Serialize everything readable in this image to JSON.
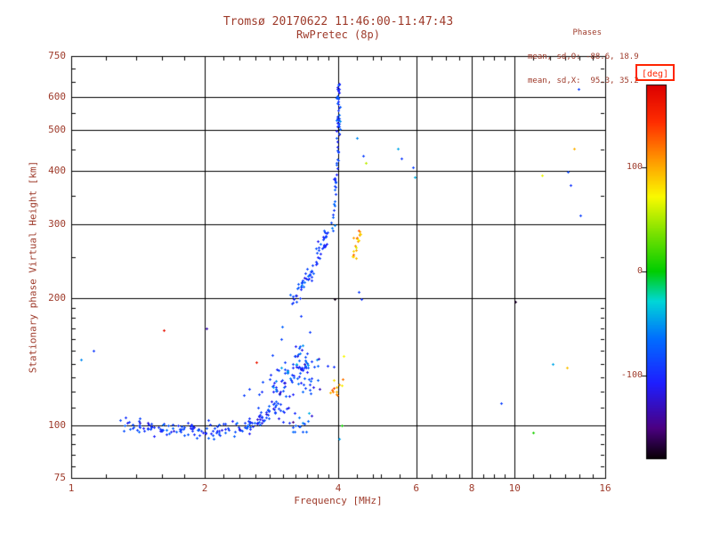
{
  "header": {
    "title": "Tromsø 20170622 11:46:00-11:47:43",
    "subtitle": "RwPretec (8p)"
  },
  "legend": {
    "title": "Phases",
    "line_o": "mean, sd,O: -88.6, 18.9",
    "line_x": "mean, sd,X:  95.3, 35.2"
  },
  "colorbar": {
    "unit_label": "[deg]",
    "ticks": [
      100,
      0,
      -100
    ],
    "range": [
      -180,
      180
    ],
    "stops": [
      {
        "t": 0.0,
        "c": "#0a0008"
      },
      {
        "t": 0.08,
        "c": "#4b0082"
      },
      {
        "t": 0.2,
        "c": "#1e1eff"
      },
      {
        "t": 0.32,
        "c": "#006eff"
      },
      {
        "t": 0.42,
        "c": "#00d7d7"
      },
      {
        "t": 0.5,
        "c": "#00cd00"
      },
      {
        "t": 0.6,
        "c": "#78e100"
      },
      {
        "t": 0.7,
        "c": "#fafa00"
      },
      {
        "t": 0.8,
        "c": "#ff9600"
      },
      {
        "t": 0.9,
        "c": "#ff2d00"
      },
      {
        "t": 1.0,
        "c": "#dc0000"
      }
    ]
  },
  "style": {
    "text_color": "#9e3a2a",
    "accent_red": "#ff2400",
    "axis_color": "#000000",
    "background": "#ffffff"
  },
  "chart_data": {
    "type": "scatter",
    "title": "Tromsø 20170622 11:46:00-11:47:43 — RwPretec (8p)",
    "xlabel": "Frequency [MHz]",
    "ylabel": "Stationary phase Virtual Height [km]",
    "xscale": "log",
    "yscale": "log",
    "xlim": [
      1,
      16
    ],
    "ylim": [
      75,
      750
    ],
    "x_ticks": [
      1,
      2,
      4,
      6,
      8,
      10,
      16
    ],
    "y_ticks": [
      75,
      100,
      200,
      300,
      400,
      500,
      600,
      750
    ],
    "grid_x": [
      2,
      4,
      6,
      8,
      10
    ],
    "grid_y": [
      100,
      200,
      300,
      400,
      500,
      600
    ],
    "x_minor": [
      1.2,
      1.4,
      1.6,
      1.8,
      2.2,
      2.4,
      2.6,
      2.8,
      3,
      3.2,
      3.4,
      3.6,
      3.8,
      4.4,
      4.8,
      5,
      5.5,
      6.5,
      7,
      7.5,
      8.5,
      9,
      9.5,
      11,
      12,
      13,
      14,
      15
    ],
    "y_minor": [
      80,
      85,
      90,
      95,
      110,
      120,
      130,
      140,
      150,
      160,
      170,
      180,
      190,
      250,
      350,
      450,
      550,
      650,
      700
    ],
    "grid": true,
    "legend_position": "top-right",
    "color_mapping": "phase_deg mapped through rainbow colorbar [-180,180]",
    "marker": "plus",
    "seed": 20170622,
    "clusters": [
      {
        "name": "E-region flat trace ~100 km",
        "path": [
          [
            1.28,
            100
          ],
          [
            1.5,
            99
          ],
          [
            1.75,
            98
          ],
          [
            2.05,
            97
          ],
          [
            2.35,
            98
          ],
          [
            2.55,
            101
          ],
          [
            2.75,
            106
          ],
          [
            2.95,
            113
          ]
        ],
        "count": 170,
        "f_jitter": 0.004,
        "h_jitter": 0.009,
        "phase_mean": -90,
        "phase_sd": 14
      },
      {
        "name": "scattered cloud 2.8-3.6 MHz 110-150 km",
        "path": [
          [
            2.78,
            118
          ],
          [
            2.95,
            126
          ],
          [
            3.1,
            133
          ],
          [
            3.25,
            139
          ],
          [
            3.4,
            136
          ],
          [
            3.55,
            127
          ]
        ],
        "count": 115,
        "f_jitter": 0.018,
        "h_jitter": 0.034,
        "phase_mean": -88,
        "phase_sd": 22
      },
      {
        "name": "F-region lower trace",
        "path": [
          [
            3.12,
            196
          ],
          [
            3.3,
            214
          ],
          [
            3.45,
            231
          ],
          [
            3.6,
            251
          ],
          [
            3.72,
            271
          ],
          [
            3.82,
            294
          ]
        ],
        "count": 70,
        "f_jitter": 0.004,
        "h_jitter": 0.009,
        "phase_mean": -90,
        "phase_sd": 14
      },
      {
        "name": "F-region asymptote near 4 MHz",
        "path": [
          [
            3.87,
            305
          ],
          [
            3.93,
            348
          ],
          [
            3.96,
            396
          ],
          [
            3.98,
            442
          ],
          [
            3.99,
            487
          ],
          [
            4.0,
            545
          ],
          [
            4.0,
            600
          ],
          [
            4.01,
            648
          ]
        ],
        "count": 72,
        "f_jitter": 0.0025,
        "h_jitter": 0.008,
        "phase_mean": -88,
        "phase_sd": 14
      },
      {
        "name": "X-mode trace 4.3-4.5 MHz (orange)",
        "path": [
          [
            4.27,
            240
          ],
          [
            4.33,
            254
          ],
          [
            4.38,
            266
          ],
          [
            4.43,
            280
          ],
          [
            4.47,
            292
          ]
        ],
        "count": 20,
        "f_jitter": 0.003,
        "h_jitter": 0.006,
        "phase_mean": 95,
        "phase_sd": 18
      },
      {
        "name": "X-mode low clump ~4 MHz 120 km (orange)",
        "path": [
          [
            3.88,
            119
          ],
          [
            3.98,
            124
          ],
          [
            4.08,
            129
          ]
        ],
        "count": 12,
        "f_jitter": 0.005,
        "h_jitter": 0.01,
        "phase_mean": 100,
        "phase_sd": 22
      },
      {
        "name": "sparse low tail to 3.5 MHz",
        "path": [
          [
            3.0,
            101
          ],
          [
            3.25,
            99
          ],
          [
            3.5,
            98
          ]
        ],
        "count": 16,
        "f_jitter": 0.01,
        "h_jitter": 0.012,
        "phase_mean": -85,
        "phase_sd": 20
      }
    ],
    "points": [
      [
        1.05,
        143,
        -55
      ],
      [
        1.12,
        150,
        -92
      ],
      [
        1.62,
        168,
        168
      ],
      [
        2.02,
        170,
        -135
      ],
      [
        2.45,
        118,
        -88
      ],
      [
        2.52,
        122,
        -90
      ],
      [
        2.62,
        141,
        162
      ],
      [
        2.98,
        160,
        -85
      ],
      [
        3.45,
        166,
        -90
      ],
      [
        3.3,
        182,
        -92
      ],
      [
        3.93,
        199,
        -176
      ],
      [
        4.02,
        93,
        -48
      ],
      [
        4.08,
        100,
        5
      ],
      [
        4.12,
        146,
        72
      ],
      [
        4.4,
        480,
        -55
      ],
      [
        4.45,
        207,
        -90
      ],
      [
        4.52,
        199,
        -95
      ],
      [
        4.55,
        435,
        -88
      ],
      [
        4.62,
        418,
        55
      ],
      [
        5.45,
        452,
        -45
      ],
      [
        5.55,
        428,
        -92
      ],
      [
        5.9,
        408,
        -88
      ],
      [
        5.95,
        388,
        -42
      ],
      [
        9.3,
        113,
        -88
      ],
      [
        10.05,
        196,
        -172
      ],
      [
        11.0,
        96,
        8
      ],
      [
        11.5,
        392,
        68
      ],
      [
        12.2,
        140,
        -45
      ],
      [
        13.1,
        137,
        92
      ],
      [
        13.2,
        398,
        -85
      ],
      [
        13.35,
        370,
        -95
      ],
      [
        13.6,
        452,
        98
      ],
      [
        13.9,
        628,
        -88
      ],
      [
        14.05,
        315,
        -88
      ]
    ]
  }
}
